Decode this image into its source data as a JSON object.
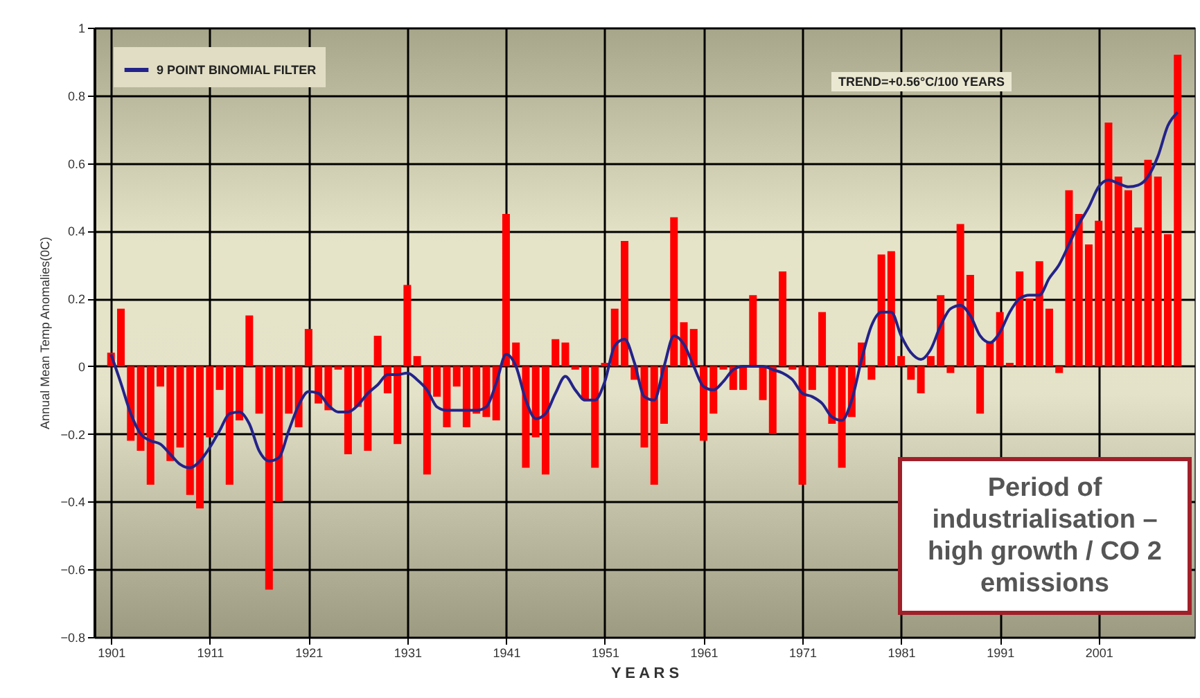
{
  "chart_data": {
    "type": "bar",
    "xlabel": "Y E A R S",
    "ylabel": "Annual Mean Temp Anomalies(0C)",
    "x": [
      1901,
      1902,
      1903,
      1904,
      1905,
      1906,
      1907,
      1908,
      1909,
      1910,
      1911,
      1912,
      1913,
      1914,
      1915,
      1916,
      1917,
      1918,
      1919,
      1920,
      1921,
      1922,
      1923,
      1924,
      1925,
      1926,
      1927,
      1928,
      1929,
      1930,
      1931,
      1932,
      1933,
      1934,
      1935,
      1936,
      1937,
      1938,
      1939,
      1940,
      1941,
      1942,
      1943,
      1944,
      1945,
      1946,
      1947,
      1948,
      1949,
      1950,
      1951,
      1952,
      1953,
      1954,
      1955,
      1956,
      1957,
      1958,
      1959,
      1960,
      1961,
      1962,
      1963,
      1964,
      1965,
      1966,
      1967,
      1968,
      1969,
      1970,
      1971,
      1972,
      1973,
      1974,
      1975,
      1976,
      1977,
      1978,
      1979,
      1980,
      1981,
      1982,
      1983,
      1984,
      1985,
      1986,
      1987,
      1988,
      1989,
      1990,
      1991,
      1992,
      1993,
      1994,
      1995,
      1996,
      1997,
      1998,
      1999,
      2000,
      2001,
      2002,
      2003,
      2004,
      2005,
      2006,
      2007,
      2008,
      2009
    ],
    "series": [
      {
        "color": "#ff0000",
        "values": [
          0.04,
          0.17,
          -0.22,
          -0.25,
          -0.35,
          -0.06,
          -0.28,
          -0.24,
          -0.38,
          -0.42,
          -0.21,
          -0.07,
          -0.35,
          -0.16,
          0.15,
          -0.14,
          -0.66,
          -0.4,
          -0.14,
          -0.18,
          0.11,
          -0.11,
          -0.13,
          -0.01,
          -0.26,
          -0.12,
          -0.25,
          0.09,
          -0.08,
          -0.23,
          0.24,
          0.03,
          -0.32,
          -0.09,
          -0.18,
          -0.06,
          -0.18,
          -0.14,
          -0.15,
          -0.16,
          0.45,
          0.07,
          -0.3,
          -0.21,
          -0.32,
          0.08,
          0.07,
          -0.01,
          -0.1,
          -0.3,
          0.01,
          0.17,
          0.37,
          -0.04,
          -0.24,
          -0.35,
          -0.17,
          0.44,
          0.13,
          0.11,
          -0.22,
          -0.14,
          -0.01,
          -0.07,
          -0.07,
          0.21,
          -0.1,
          -0.2,
          0.28,
          -0.01,
          -0.35,
          -0.07,
          0.16,
          -0.17,
          -0.3,
          -0.15,
          0.07,
          -0.04,
          0.33,
          0.34,
          0.03,
          -0.04,
          -0.08,
          0.03,
          0.21,
          -0.02,
          0.42,
          0.27,
          -0.14,
          0.07,
          0.16,
          0.01,
          0.28,
          0.2,
          0.31,
          0.17,
          -0.02,
          0.52,
          0.45,
          0.36,
          0.43,
          0.72,
          0.56,
          0.52,
          0.41,
          0.61,
          0.56,
          0.39,
          0.92
        ]
      },
      {
        "type": "line",
        "name": "9 POINT BINOMIAL FILTER",
        "color": "#23238a",
        "values": [
          0.035,
          -0.05,
          -0.14,
          -0.2,
          -0.22,
          -0.23,
          -0.26,
          -0.29,
          -0.3,
          -0.28,
          -0.24,
          -0.19,
          -0.14,
          -0.135,
          -0.17,
          -0.25,
          -0.28,
          -0.27,
          -0.19,
          -0.115,
          -0.075,
          -0.08,
          -0.115,
          -0.135,
          -0.135,
          -0.115,
          -0.08,
          -0.055,
          -0.025,
          -0.025,
          -0.02,
          -0.04,
          -0.07,
          -0.12,
          -0.13,
          -0.13,
          -0.13,
          -0.13,
          -0.12,
          -0.05,
          0.035,
          0,
          -0.1,
          -0.155,
          -0.14,
          -0.08,
          -0.03,
          -0.07,
          -0.1,
          -0.1,
          -0.045,
          0.06,
          0.08,
          0.01,
          -0.09,
          -0.1,
          0,
          0.09,
          0.065,
          0,
          -0.06,
          -0.07,
          -0.045,
          -0.01,
          0,
          0,
          0,
          -0.01,
          -0.02,
          -0.04,
          -0.08,
          -0.09,
          -0.11,
          -0.15,
          -0.16,
          -0.1,
          0.02,
          0.12,
          0.16,
          0.16,
          0.09,
          0.04,
          0.02,
          0.05,
          0.12,
          0.17,
          0.18,
          0.15,
          0.09,
          0.07,
          0.1,
          0.16,
          0.2,
          0.21,
          0.21,
          0.26,
          0.3,
          0.36,
          0.42,
          0.47,
          0.53,
          0.55,
          0.54,
          0.53,
          0.535,
          0.56,
          0.62,
          0.71,
          0.75
        ]
      }
    ],
    "xlim": [
      1900,
      2010
    ],
    "xticks": [
      1901,
      1911,
      1921,
      1931,
      1941,
      1951,
      1961,
      1971,
      1981,
      1991,
      2001
    ],
    "ylim": [
      -0.8,
      1
    ],
    "yticks": [
      -0.8,
      -0.6,
      -0.4,
      -0.2,
      0,
      0.2,
      0.4,
      0.6,
      0.8,
      1
    ],
    "grid": true,
    "legend": "top left",
    "annotations": [
      "TREND=+0.56°C/100 YEARS",
      "Period of industrialisation – high growth / CO 2 emissions"
    ]
  }
}
